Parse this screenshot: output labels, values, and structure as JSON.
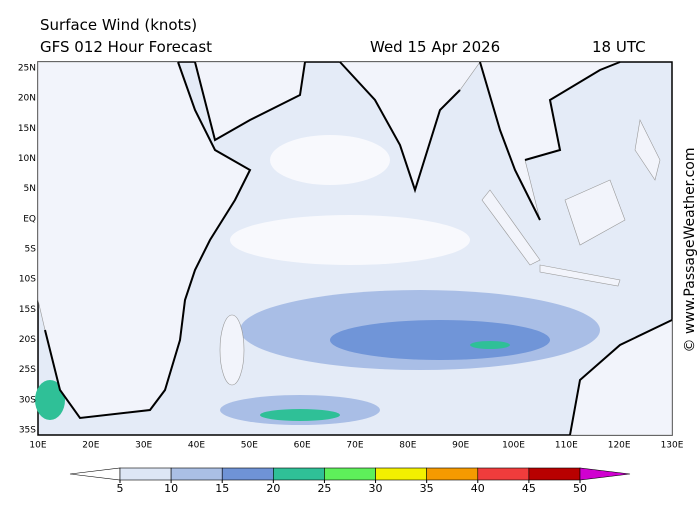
{
  "header": {
    "title": "Surface Wind (knots)",
    "model": "GFS 012 Hour Forecast",
    "date": "Wed 15 Apr 2026",
    "time": "18 UTC"
  },
  "map": {
    "lat_labels": [
      "25N",
      "20N",
      "15N",
      "10N",
      "5N",
      "EQ",
      "5S",
      "10S",
      "15S",
      "20S",
      "25S",
      "30S",
      "35S"
    ],
    "lon_labels": [
      "10E",
      "20E",
      "30E",
      "40E",
      "50E",
      "60E",
      "70E",
      "80E",
      "90E",
      "100E",
      "110E",
      "120E",
      "130E"
    ]
  },
  "colorbar": {
    "ticks": [
      5,
      10,
      15,
      20,
      25,
      30,
      35,
      40,
      45,
      50
    ],
    "colors": [
      "#ffffff",
      "#dde6f5",
      "#aabfe5",
      "#6f93d6",
      "#2fc097",
      "#5ef05a",
      "#f3f000",
      "#f59a00",
      "#f03c3c",
      "#b80000",
      "#d000d0"
    ]
  },
  "watermark": "© www.PassageWeather.com"
}
